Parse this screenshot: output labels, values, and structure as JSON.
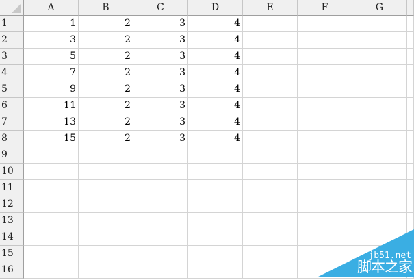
{
  "columns": [
    "A",
    "B",
    "C",
    "D",
    "E",
    "F",
    "G"
  ],
  "row_numbers": [
    "1",
    "2",
    "3",
    "4",
    "5",
    "6",
    "7",
    "8",
    "9",
    "10",
    "11",
    "12",
    "13",
    "14",
    "15",
    "16"
  ],
  "cells": [
    [
      "1",
      "2",
      "3",
      "4"
    ],
    [
      "3",
      "2",
      "3",
      "4"
    ],
    [
      "5",
      "2",
      "3",
      "4"
    ],
    [
      "7",
      "2",
      "3",
      "4"
    ],
    [
      "9",
      "2",
      "3",
      "4"
    ],
    [
      "11",
      "2",
      "3",
      "4"
    ],
    [
      "13",
      "2",
      "3",
      "4"
    ],
    [
      "15",
      "2",
      "3",
      "4"
    ]
  ],
  "watermark": {
    "site": "jb51.net",
    "name": "脚本之家",
    "color": "#3aaee3"
  }
}
